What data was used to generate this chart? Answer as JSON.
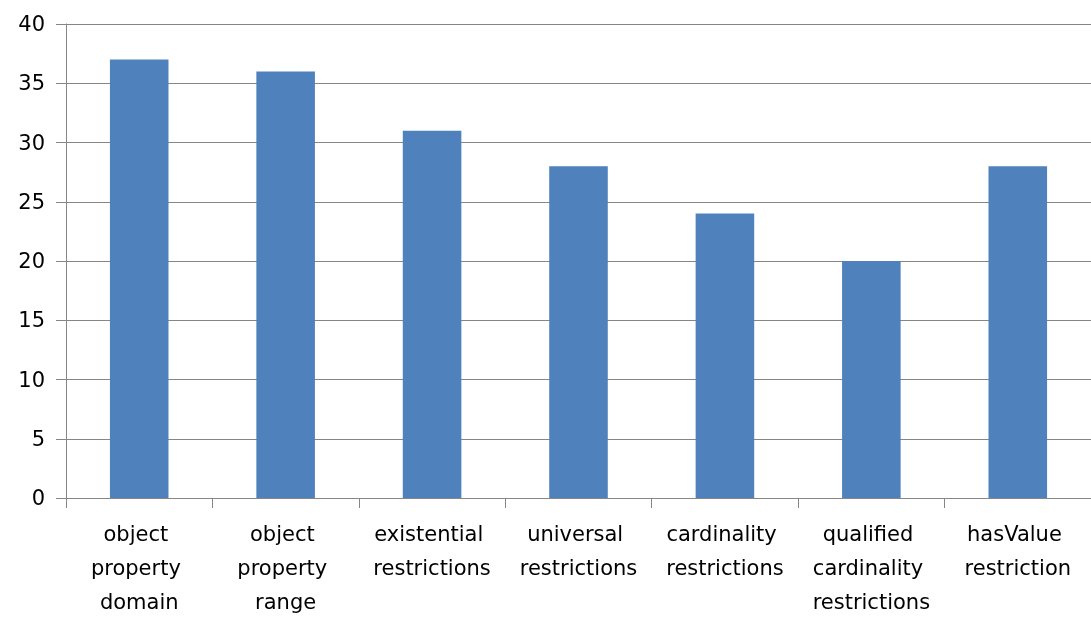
{
  "chart_data": {
    "type": "bar",
    "categories": [
      "object property domain",
      "object property range",
      "existential restrictions",
      "universal restrictions",
      "cardinality restrictions",
      "qualified cardinality restrictions",
      "hasValue restriction"
    ],
    "values": [
      37,
      36,
      31,
      28,
      24,
      20,
      28
    ],
    "color": "#4f81bd",
    "ylim": [
      0,
      40
    ],
    "yticks": [
      0,
      5,
      10,
      15,
      20,
      25,
      30,
      35,
      40
    ],
    "grid": "y"
  }
}
